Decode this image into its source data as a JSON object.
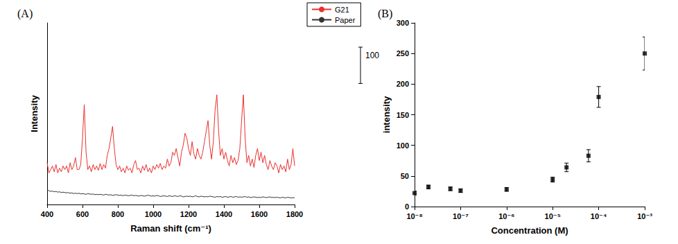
{
  "chart_data": [
    {
      "type": "line",
      "title": "(A)",
      "xlabel": "Raman shift (cm⁻¹)",
      "ylabel": "Intensity",
      "x": [
        400,
        410,
        420,
        430,
        440,
        450,
        460,
        470,
        480,
        490,
        500,
        510,
        520,
        530,
        540,
        550,
        560,
        570,
        580,
        590,
        600,
        610,
        620,
        630,
        640,
        650,
        660,
        670,
        680,
        690,
        700,
        710,
        720,
        730,
        740,
        750,
        760,
        770,
        780,
        790,
        800,
        810,
        820,
        830,
        840,
        850,
        860,
        870,
        880,
        890,
        900,
        910,
        920,
        930,
        940,
        950,
        960,
        970,
        980,
        990,
        1000,
        1010,
        1020,
        1030,
        1040,
        1050,
        1060,
        1070,
        1080,
        1090,
        1100,
        1110,
        1120,
        1130,
        1140,
        1150,
        1160,
        1170,
        1180,
        1190,
        1200,
        1210,
        1220,
        1230,
        1240,
        1250,
        1260,
        1270,
        1280,
        1290,
        1300,
        1310,
        1320,
        1330,
        1340,
        1350,
        1360,
        1370,
        1380,
        1390,
        1400,
        1410,
        1420,
        1430,
        1440,
        1450,
        1460,
        1470,
        1480,
        1490,
        1500,
        1510,
        1520,
        1530,
        1540,
        1550,
        1560,
        1570,
        1580,
        1590,
        1600,
        1610,
        1620,
        1630,
        1640,
        1650,
        1660,
        1670,
        1680,
        1690,
        1700,
        1710,
        1720,
        1730,
        1740,
        1750,
        1760,
        1770,
        1780,
        1790,
        1800
      ],
      "series": [
        {
          "name": "G21",
          "color": "#e8302f",
          "line_style": "solid",
          "values": [
            115,
            87,
            96,
            106,
            90,
            110,
            87,
            100,
            90,
            106,
            96,
            106,
            87,
            115,
            96,
            106,
            129,
            96,
            96,
            110,
            183,
            275,
            144,
            96,
            106,
            90,
            110,
            96,
            106,
            94,
            113,
            96,
            110,
            100,
            135,
            154,
            183,
            215,
            154,
            110,
            96,
            106,
            90,
            100,
            87,
            106,
            94,
            100,
            87,
            110,
            121,
            96,
            100,
            87,
            106,
            94,
            110,
            90,
            100,
            87,
            106,
            96,
            110,
            100,
            113,
            96,
            106,
            100,
            125,
            106,
            115,
            144,
            135,
            154,
            129,
            106,
            144,
            163,
            196,
            183,
            154,
            135,
            173,
            140,
            125,
            154,
            135,
            125,
            144,
            173,
            202,
            231,
            163,
            125,
            173,
            260,
            302,
            202,
            135,
            154,
            125,
            144,
            121,
            106,
            135,
            115,
            129,
            110,
            121,
            154,
            231,
            302,
            183,
            115,
            135,
            106,
            125,
            102,
            135,
            154,
            121,
            144,
            115,
            135,
            110,
            96,
            121,
            106,
            96,
            115,
            106,
            87,
            110,
            96,
            106,
            90,
            125,
            96,
            110,
            154,
            106
          ]
        },
        {
          "name": "Paper",
          "color": "#333333",
          "line_style": "solid",
          "values": [
            40,
            38,
            36,
            37,
            35,
            36,
            34,
            35,
            33,
            34,
            33,
            32,
            33,
            31,
            32,
            30,
            31,
            30,
            31,
            29,
            30,
            29,
            28,
            30,
            29,
            28,
            29,
            27,
            28,
            27,
            28,
            27,
            26,
            28,
            27,
            26,
            27,
            25,
            26,
            27,
            26,
            25,
            26,
            24,
            26,
            25,
            24,
            25,
            26,
            24,
            25,
            24,
            23,
            25,
            24,
            23,
            24,
            26,
            24,
            23,
            24,
            23,
            25,
            24,
            22,
            23,
            24,
            23,
            22,
            24,
            23,
            22,
            24,
            23,
            22,
            24,
            23,
            21,
            22,
            23,
            22,
            23,
            21,
            22,
            24,
            22,
            21,
            23,
            22,
            21,
            22,
            21,
            23,
            22,
            21,
            20,
            22,
            21,
            22,
            20,
            21,
            22,
            20,
            21,
            22,
            20,
            21,
            22,
            20,
            21,
            20,
            21,
            22,
            20,
            21,
            19,
            20,
            21,
            20,
            19,
            20,
            19,
            21,
            20,
            19,
            20,
            21,
            19,
            20,
            19,
            20,
            19,
            18,
            20,
            19,
            18,
            20,
            19,
            18,
            19,
            18
          ]
        }
      ],
      "xlim": [
        400,
        1800
      ],
      "xticks": [
        400,
        600,
        800,
        1000,
        1200,
        1400,
        1600,
        1800
      ],
      "ylim": [
        0,
        500
      ],
      "tick_labels": "x",
      "legend": "upper right",
      "grid": false,
      "scale_bar": 100
    },
    {
      "type": "scatter",
      "title": "(B)",
      "xlabel": "Concentration (M)",
      "ylabel": "intensity",
      "x": [
        1e-08,
        2e-08,
        6e-08,
        1e-07,
        1e-06,
        1e-05,
        2e-05,
        6e-05,
        0.0001,
        0.001
      ],
      "values": [
        22,
        32,
        29,
        26,
        28,
        44,
        64,
        83,
        179,
        250
      ],
      "errors": [
        3,
        3,
        3,
        3,
        3,
        4,
        7,
        10,
        17,
        27
      ],
      "xlim": [
        1e-08,
        0.001
      ],
      "xticks": [
        {
          "value": 1e-08,
          "label": "10⁻⁸"
        },
        {
          "value": 1e-07,
          "label": "10⁻⁷"
        },
        {
          "value": 1e-06,
          "label": "10⁻⁶"
        },
        {
          "value": 1e-05,
          "label": "10⁻⁵"
        },
        {
          "value": 0.0001,
          "label": "10⁻⁴"
        },
        {
          "value": 0.001,
          "label": "10⁻³"
        }
      ],
      "ylim": [
        0,
        300
      ],
      "yticks": [
        0,
        50,
        100,
        150,
        200,
        250,
        300
      ],
      "log": "x",
      "marker": "square",
      "color": "#000000",
      "grid": false
    }
  ]
}
